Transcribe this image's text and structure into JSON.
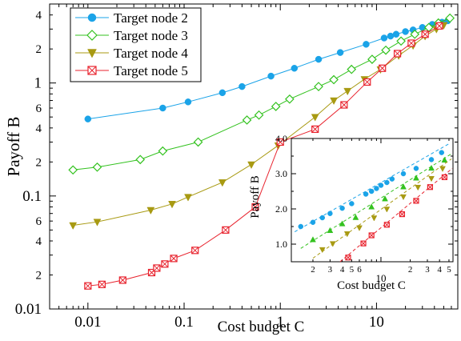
{
  "chart_data": [
    {
      "type": "line",
      "xscale": "log",
      "yscale": "log",
      "xlabel": "Cost budget C",
      "ylabel": "Payoff B",
      "xlim": [
        0.004,
        70
      ],
      "ylim": [
        0.01,
        5
      ],
      "xticks": [
        0.01,
        0.1,
        1,
        10
      ],
      "xtick_labels": [
        "0.01",
        "0.1",
        "1",
        "10"
      ],
      "yticks": [
        0.01,
        0.1,
        1
      ],
      "ytick_labels": [
        "0.01",
        "0.1",
        "1"
      ],
      "yminor_labels": [
        {
          "v": 0.02,
          "t": "2"
        },
        {
          "v": 0.04,
          "t": "4"
        },
        {
          "v": 0.06,
          "t": "6"
        },
        {
          "v": 0.2,
          "t": "2"
        },
        {
          "v": 0.4,
          "t": "4"
        },
        {
          "v": 0.6,
          "t": "6"
        },
        {
          "v": 2,
          "t": "2"
        },
        {
          "v": 4,
          "t": "4"
        }
      ],
      "legend": "top-left",
      "series": [
        {
          "name": "Target node 2",
          "color": "#1aa3e8",
          "marker": "circle",
          "x": [
            0.01,
            0.06,
            0.11,
            0.25,
            0.4,
            0.8,
            1.4,
            2.5,
            4.2,
            7.8,
            12,
            14,
            16,
            20,
            24,
            30,
            38,
            48,
            55
          ],
          "y": [
            0.48,
            0.6,
            0.68,
            0.82,
            0.93,
            1.15,
            1.35,
            1.62,
            1.86,
            2.2,
            2.5,
            2.6,
            2.7,
            2.85,
            2.95,
            3.1,
            3.3,
            3.45,
            3.55
          ]
        },
        {
          "name": "Target node 3",
          "color": "#33c21f",
          "marker": "diamond-open",
          "x": [
            0.007,
            0.0125,
            0.035,
            0.06,
            0.14,
            0.45,
            0.6,
            0.9,
            1.25,
            2.5,
            3.6,
            5.5,
            9,
            12.5,
            18,
            25,
            35,
            44,
            58
          ],
          "y": [
            0.17,
            0.18,
            0.21,
            0.25,
            0.3,
            0.47,
            0.52,
            0.62,
            0.72,
            0.93,
            1.07,
            1.32,
            1.62,
            1.95,
            2.35,
            2.7,
            3.1,
            3.4,
            3.75
          ]
        },
        {
          "name": "Target node 4",
          "color": "#a89a12",
          "marker": "triangle-down",
          "x": [
            0.007,
            0.0125,
            0.045,
            0.075,
            0.11,
            0.25,
            0.5,
            0.95,
            2.3,
            3.6,
            5,
            7.5,
            11,
            17,
            24,
            32,
            42,
            50
          ],
          "y": [
            0.055,
            0.059,
            0.075,
            0.085,
            0.098,
            0.132,
            0.19,
            0.28,
            0.5,
            0.7,
            0.85,
            1.08,
            1.32,
            1.75,
            2.15,
            2.6,
            3.0,
            3.25
          ]
        },
        {
          "name": "Target node 5",
          "color": "#e8232e",
          "marker": "square-x",
          "x": [
            0.01,
            0.014,
            0.023,
            0.046,
            0.052,
            0.063,
            0.078,
            0.13,
            0.27,
            0.55,
            1.0,
            2.3,
            4.6,
            8,
            11.5,
            16.5,
            23,
            32,
            45
          ],
          "y": [
            0.016,
            0.0165,
            0.018,
            0.021,
            0.023,
            0.025,
            0.028,
            0.033,
            0.05,
            0.08,
            0.3,
            0.39,
            0.64,
            1.02,
            1.35,
            1.82,
            2.25,
            2.7,
            3.2
          ]
        }
      ]
    },
    {
      "type": "scatter",
      "xscale": "log",
      "yscale": "linear",
      "xlabel": "Cost budget C",
      "ylabel": "Payoff B",
      "xlim": [
        1.2,
        55
      ],
      "ylim": [
        0.5,
        4.0
      ],
      "yticks": [
        1.0,
        2.0,
        3.0,
        4.0
      ],
      "ytick_labels": [
        "1.0",
        "2.0",
        "3.0",
        "4.0"
      ],
      "xticks_major": [
        {
          "v": 10,
          "t": "10"
        }
      ],
      "xticks_minor": [
        {
          "v": 2,
          "t": "2"
        },
        {
          "v": 3,
          "t": "3"
        },
        {
          "v": 4,
          "t": "4"
        },
        {
          "v": 5,
          "t": "5"
        },
        {
          "v": 6,
          "t": "6"
        },
        {
          "v": 20,
          "t": "2"
        },
        {
          "v": 30,
          "t": "3"
        },
        {
          "v": 40,
          "t": "4"
        },
        {
          "v": 50,
          "t": "5"
        }
      ],
      "series": [
        {
          "color": "#1aa3e8",
          "marker": "circle",
          "x": [
            1.5,
            2,
            2.5,
            3,
            4,
            5,
            7,
            8,
            9,
            10,
            11.5,
            13,
            17,
            23,
            33,
            42
          ],
          "y": [
            1.5,
            1.62,
            1.75,
            1.87,
            2.02,
            2.15,
            2.42,
            2.5,
            2.58,
            2.67,
            2.75,
            2.85,
            3.0,
            3.15,
            3.4,
            3.6
          ],
          "fit_x": [
            1.3,
            50
          ],
          "fit_y": [
            1.35,
            3.85
          ]
        },
        {
          "color": "#33c21f",
          "marker": "triangle-up",
          "x": [
            2,
            3,
            4,
            5.5,
            8,
            11,
            17,
            23,
            33,
            45
          ],
          "y": [
            1.12,
            1.38,
            1.57,
            1.75,
            2.05,
            2.28,
            2.62,
            2.87,
            3.15,
            3.38
          ],
          "fit_x": [
            1.5,
            52
          ],
          "fit_y": [
            0.88,
            3.55
          ]
        },
        {
          "color": "#a89a12",
          "marker": "triangle-down",
          "x": [
            2.5,
            3.2,
            4.5,
            6,
            8.5,
            11.5,
            17,
            24,
            33,
            43
          ],
          "y": [
            0.85,
            1.02,
            1.3,
            1.47,
            1.75,
            2.0,
            2.35,
            2.62,
            2.87,
            3.15
          ],
          "fit_x": [
            2.0,
            53
          ],
          "fit_y": [
            0.6,
            3.42
          ]
        },
        {
          "color": "#e8232e",
          "marker": "square-x",
          "x": [
            4.6,
            6.6,
            8,
            11.5,
            16.5,
            23,
            32,
            45
          ],
          "y": [
            0.62,
            1.02,
            1.25,
            1.55,
            1.85,
            2.23,
            2.62,
            2.9
          ],
          "fit_x": [
            3.8,
            54
          ],
          "fit_y": [
            0.5,
            3.15
          ]
        }
      ]
    }
  ]
}
